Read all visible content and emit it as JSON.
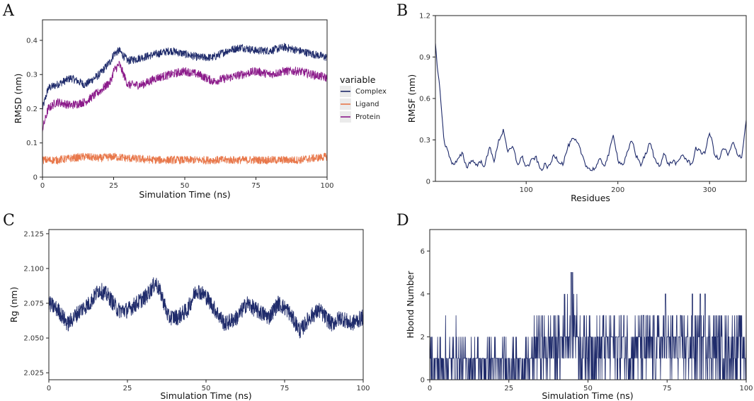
{
  "colors": {
    "complex": "#1f2b6b",
    "ligand": "#e8774a",
    "protein": "#8b1a8a",
    "navy": "#1f2b6b",
    "legend_bg": "#ebebeb"
  },
  "chart_data": [
    {
      "panel": "A",
      "type": "line",
      "xlabel": "Simulation Time (ns)",
      "ylabel": "RMSD (nm)",
      "xlim": [
        0,
        100
      ],
      "ylim": [
        0,
        0.46
      ],
      "xticks": [
        "0",
        "25",
        "50",
        "75",
        "100"
      ],
      "yticks": [
        "0",
        "0.1",
        "0.2",
        "0.3",
        "0.4"
      ],
      "legend": {
        "title": "variable",
        "position": "right",
        "entries": [
          "Complex",
          "Ligand",
          "Protein"
        ]
      },
      "series": [
        {
          "name": "Complex",
          "color_key": "complex",
          "x": [
            0,
            2,
            5,
            10,
            15,
            20,
            24,
            25,
            27,
            30,
            35,
            40,
            45,
            50,
            55,
            60,
            65,
            70,
            75,
            80,
            85,
            90,
            95,
            100
          ],
          "values": [
            0.2,
            0.26,
            0.27,
            0.29,
            0.27,
            0.3,
            0.34,
            0.36,
            0.37,
            0.34,
            0.35,
            0.36,
            0.37,
            0.36,
            0.35,
            0.35,
            0.37,
            0.38,
            0.37,
            0.37,
            0.38,
            0.37,
            0.36,
            0.35
          ],
          "noise": 0.012
        },
        {
          "name": "Protein",
          "color_key": "protein",
          "x": [
            0,
            2,
            5,
            10,
            15,
            20,
            24,
            25,
            27,
            30,
            35,
            40,
            45,
            50,
            55,
            60,
            65,
            70,
            75,
            80,
            85,
            90,
            95,
            100
          ],
          "values": [
            0.14,
            0.2,
            0.22,
            0.21,
            0.22,
            0.25,
            0.28,
            0.31,
            0.33,
            0.27,
            0.27,
            0.29,
            0.3,
            0.31,
            0.3,
            0.28,
            0.29,
            0.3,
            0.31,
            0.3,
            0.31,
            0.31,
            0.3,
            0.29
          ],
          "noise": 0.013
        },
        {
          "name": "Ligand",
          "color_key": "ligand",
          "x": [
            0,
            5,
            10,
            15,
            20,
            25,
            30,
            40,
            50,
            60,
            70,
            80,
            90,
            95,
            100
          ],
          "values": [
            0.05,
            0.05,
            0.055,
            0.06,
            0.055,
            0.06,
            0.055,
            0.05,
            0.05,
            0.05,
            0.05,
            0.05,
            0.05,
            0.055,
            0.06
          ],
          "noise": 0.012
        }
      ]
    },
    {
      "panel": "B",
      "type": "line",
      "xlabel": "Residues",
      "ylabel": "RMSF (nm)",
      "xlim": [
        1,
        340
      ],
      "ylim": [
        0,
        1.2
      ],
      "xticks": [
        "100",
        "200",
        "300"
      ],
      "yticks": [
        "0",
        "0.3",
        "0.6",
        "0.9",
        "1.2"
      ],
      "series": [
        {
          "name": "RMSF",
          "color_key": "navy",
          "x": [
            1,
            3,
            5,
            8,
            10,
            12,
            15,
            20,
            25,
            30,
            35,
            40,
            45,
            50,
            55,
            60,
            65,
            70,
            75,
            80,
            85,
            90,
            95,
            100,
            105,
            110,
            115,
            120,
            125,
            130,
            135,
            140,
            145,
            150,
            155,
            160,
            165,
            170,
            175,
            180,
            185,
            190,
            195,
            200,
            205,
            210,
            215,
            220,
            225,
            230,
            235,
            240,
            245,
            250,
            255,
            260,
            265,
            270,
            275,
            280,
            285,
            290,
            295,
            300,
            305,
            310,
            315,
            320,
            325,
            330,
            335,
            340
          ],
          "values": [
            1.0,
            0.8,
            0.7,
            0.45,
            0.3,
            0.25,
            0.2,
            0.12,
            0.15,
            0.2,
            0.1,
            0.16,
            0.12,
            0.14,
            0.12,
            0.25,
            0.15,
            0.3,
            0.38,
            0.2,
            0.25,
            0.12,
            0.18,
            0.1,
            0.14,
            0.18,
            0.08,
            0.12,
            0.1,
            0.2,
            0.15,
            0.13,
            0.25,
            0.3,
            0.28,
            0.2,
            0.12,
            0.08,
            0.1,
            0.15,
            0.12,
            0.2,
            0.34,
            0.15,
            0.12,
            0.2,
            0.3,
            0.18,
            0.12,
            0.2,
            0.28,
            0.15,
            0.12,
            0.2,
            0.12,
            0.15,
            0.12,
            0.2,
            0.15,
            0.12,
            0.25,
            0.2,
            0.22,
            0.36,
            0.2,
            0.15,
            0.25,
            0.18,
            0.28,
            0.2,
            0.18,
            0.48
          ],
          "noise": 0.025
        }
      ]
    },
    {
      "panel": "C",
      "type": "line",
      "xlabel": "Simulation Time (ns)",
      "ylabel": "Rg (nm)",
      "xlim": [
        0,
        100
      ],
      "ylim": [
        2.02,
        2.128
      ],
      "xticks": [
        "0",
        "25",
        "50",
        "75",
        "100"
      ],
      "yticks": [
        "2.025",
        "2.050",
        "2.075",
        "2.100",
        "2.125"
      ],
      "series": [
        {
          "name": "Rg",
          "color_key": "navy",
          "x": [
            0,
            3,
            6,
            10,
            13,
            16,
            19,
            22,
            25,
            28,
            31,
            34,
            36,
            38,
            41,
            44,
            47,
            50,
            53,
            56,
            60,
            63,
            66,
            70,
            73,
            76,
            80,
            83,
            86,
            90,
            93,
            96,
            100
          ],
          "values": [
            2.075,
            2.07,
            2.06,
            2.07,
            2.075,
            2.085,
            2.08,
            2.07,
            2.07,
            2.075,
            2.08,
            2.09,
            2.08,
            2.065,
            2.065,
            2.07,
            2.085,
            2.08,
            2.07,
            2.06,
            2.065,
            2.075,
            2.07,
            2.065,
            2.075,
            2.07,
            2.055,
            2.065,
            2.07,
            2.06,
            2.065,
            2.06,
            2.065
          ],
          "noise": 0.006
        }
      ]
    },
    {
      "panel": "D",
      "type": "line",
      "xlabel": "Simulation Time (ns)",
      "ylabel": "Hbond Number",
      "xlim": [
        0,
        100
      ],
      "ylim": [
        0,
        7
      ],
      "xticks": [
        "0",
        "25",
        "50",
        "75",
        "100"
      ],
      "yticks": [
        "0",
        "2",
        "4",
        "6"
      ],
      "series": [
        {
          "name": "Hbond",
          "color_key": "navy",
          "values_description": "integer hydrogen-bond counts per frame, mostly 0–3, peak 5 near 45 ns"
        }
      ]
    }
  ]
}
